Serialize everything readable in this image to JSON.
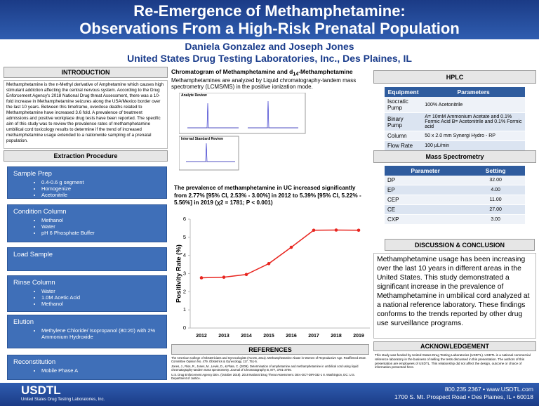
{
  "header": {
    "title_line1": "Re-Emergence of Methamphetamine:",
    "title_line2": "Observations From a High-Risk Prenatal Population",
    "authors": "Daniela Gonzalez and Joseph Jones",
    "affiliation": "United States Drug Testing Laboratories, Inc., Des Plaines, IL"
  },
  "introduction": {
    "heading": "INTRODUCTION",
    "text": "Methamphetamine is the n-Methyl derivative of Amphetamine which causes high stimulant addiction affecting the central nervous system. According to the Drug Enforcement Agency's 2018 National Drug threat Assessment, there was a 10-fold increase in Methamphetamine seizures along the USA/Mexico border over the last 10 years. Between this timeframe, overdose deaths related to Methamphetamine have increased 3.6 fold. A prevalence of treatment admissions and positive workplace drug tests have been reported. The specific aim of this study was to review the prevalence rates of methamphetamine umbilical cord toxicology results to determine if the trend of increased methamphetamine usage extended to a nationwide sampling of a prenatal population."
  },
  "extraction": {
    "heading": "Extraction Procedure",
    "steps": [
      {
        "title": "Sample Prep",
        "items": [
          "0.4-0.6 g segment",
          "Homogenize",
          "Acetonitrile"
        ]
      },
      {
        "title": "Condition Column",
        "items": [
          "Methanol",
          "Water",
          "pH 6 Phosphate Buffer"
        ]
      },
      {
        "title": "Load Sample",
        "items": []
      },
      {
        "title": "Rinse Column",
        "items": [
          "Water",
          "1.0M Acetic Acid",
          "Methanol"
        ]
      },
      {
        "title": "Elution",
        "items": [
          "Methylene Chloride/ Isopropanol (80:20) with 2% Ammonium Hydroxide"
        ]
      },
      {
        "title": "Reconstitution",
        "items": [
          "Mobile Phase A"
        ]
      }
    ]
  },
  "chromatogram": {
    "title_prefix": "Chromatogram of Methamphetamine and d",
    "title_sub": "14",
    "title_suffix": "-Methamphetamine",
    "text": "Methamphetamines are analyzed by Liquid chromatography-tandem mass spectrometry (LCMS/MS) in the positive ionization mode.",
    "panel1": "Analyte Review",
    "panel2": "Internal Standard Review"
  },
  "chart_data": {
    "type": "line",
    "title": "The prevalence of methamphetamine in UC increased significantly from 2.77% [95% CI, 2.53% - 3.00%] in 2012 to 5.39% [95% CI, 5.22% - 5.56%] in 2019 (χ2 = 1781; P < 0.001)",
    "y_label": "Positivity Rate (%)",
    "categories": [
      "2012",
      "2013",
      "2014",
      "2015",
      "2016",
      "2017",
      "2018",
      "2019"
    ],
    "values": [
      2.77,
      2.8,
      2.95,
      3.55,
      4.45,
      5.39,
      5.4,
      5.39
    ],
    "color": "#e8251f",
    "ylim": [
      0,
      6
    ],
    "yticks": [
      0,
      1,
      2,
      3,
      4,
      5,
      6
    ],
    "grid": false
  },
  "references": {
    "heading": "REFERENCES",
    "lines": [
      "The American College of Obstetricians and Gynecologists (ACOG, 2011). Methamphetamine Abuse in Women of Reproductive Age. Reaffirmed 2019. Committee Opinion No. 479. Obstetrics & Gynecology, 117, 751-5.",
      "Jones, J., Rios, R., Jones, M., Lewis, D., & Plate, C. (2009). Determination of amphetamine and methamphetamine in umbilical cord using liquid chromatography-tandem mass spectrometry. Journal of Chromatography B, 877, 3701-3706.",
      "U.S. Drug Enforcement Agency DEA. (October 2018). 2018 National Drug Threat Assessment. DEA-DCT-DIR-032-1 8. Washington, DC: U.S. Department of Justice."
    ]
  },
  "hplc": {
    "heading": "HPLC",
    "columns": [
      "Equipment",
      "Parameters"
    ],
    "rows": [
      [
        "Isocratic Pump",
        "100% Acetonitrile"
      ],
      [
        "Binary Pump",
        "A= 10mM Ammonium Acetate and 0.1% Formic Acid B= Acetonitrile and 0.1% Formic acid"
      ],
      [
        "Column",
        "50 x 2.0 mm Synergi Hydro - RP"
      ],
      [
        "Flow Rate",
        "100 µL/min"
      ]
    ]
  },
  "mass_spec": {
    "heading": "Mass Spectrometry",
    "columns": [
      "Parameter",
      "Setting"
    ],
    "rows": [
      [
        "DP",
        "32.00"
      ],
      [
        "EP",
        "4.00"
      ],
      [
        "CEP",
        "11.00"
      ],
      [
        "CE",
        "27.00"
      ],
      [
        "CXP",
        "3.00"
      ]
    ]
  },
  "discussion": {
    "heading": "DISCUSSION & CONCLUSION",
    "text": "Methamphetamine usage has been increasing over the last 10 years in different areas in the United States. This study demonstrated a significant increase in the prevalence of Methamphetamine in umbilical cord analyzed at a national reference laboratory.  These findings conforms to the trends reported by other drug use surveillance programs."
  },
  "acknowledgement": {
    "heading": "ACKNOWLEDGEMENT",
    "text": "This study was funded by United States Drug Testing Laboratories (USDTL). USDTL is a national commercial reference laboratory in the business of selling the tests discussed in this presentation. The authors of this presentation are employees of USDTL. This relationship did not affect the design, outcome or choice of information presented here."
  },
  "footer": {
    "logo": "USDTL",
    "logo_sub": "United States Drug Testing Laboratories, Inc.",
    "phone": "800.235.2367 • www.USDTL.com",
    "address": "1700 S. Mt. Prospect Road • Des Plaines, IL • 60018"
  }
}
